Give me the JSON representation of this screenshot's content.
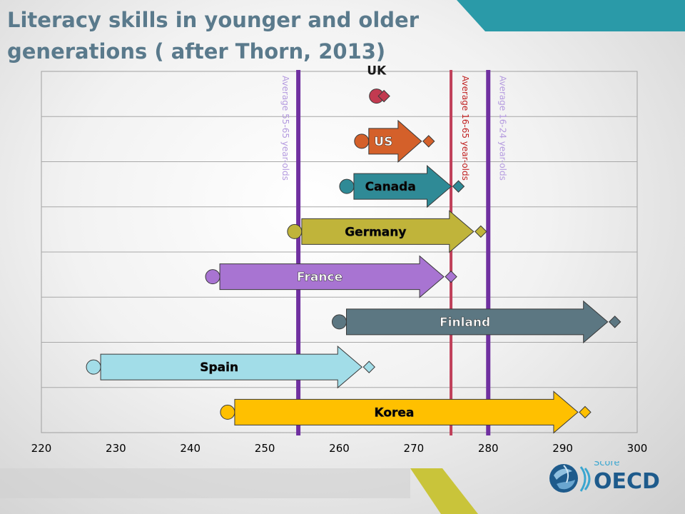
{
  "chart_data": {
    "type": "bar",
    "title": "Literacy skills in younger and older generations ( after Thorn, 2013)",
    "xlabel": "Score",
    "xlim": [
      220,
      300
    ],
    "xticks": [
      220,
      230,
      240,
      250,
      260,
      270,
      280,
      290,
      300
    ],
    "categories": [
      "UK",
      "US",
      "Canada",
      "Germany",
      "France",
      "Finland",
      "Spain",
      "Korea"
    ],
    "series": [
      {
        "name": "Average 55-65 year-olds",
        "values": [
          265,
          263,
          261,
          254,
          243,
          260,
          227,
          245
        ]
      },
      {
        "name": "Average 16-24 year-olds",
        "values": [
          266,
          272,
          276,
          279,
          275,
          297,
          264,
          293
        ]
      }
    ],
    "reference_lines": [
      {
        "label": "Average 55-65 year-olds",
        "value": 254.5,
        "color": "#7030a0"
      },
      {
        "label": "Average 16-65 year-olds",
        "value": 275,
        "color": "#c0405a"
      },
      {
        "label": "Average 16-24 year-olds",
        "value": 280,
        "color": "#7030a0"
      }
    ],
    "colors": {
      "UK": "#c23a50",
      "US": "#d4602a",
      "Canada": "#2f8a96",
      "Germany": "#c0b43a",
      "France": "#a874d2",
      "Finland": "#5c7782",
      "Spain": "#a2dde8",
      "Korea": "#ffc000"
    },
    "label_colors": {
      "UK": "#000000",
      "US": "#ffffff",
      "Canada": "#000000",
      "Germany": "#000000",
      "France": "#ffffff",
      "Finland": "#ffffff",
      "Spain": "#000000",
      "Korea": "#000000"
    }
  },
  "logo": {
    "text": "OECD",
    "icon": "globe-icon"
  }
}
